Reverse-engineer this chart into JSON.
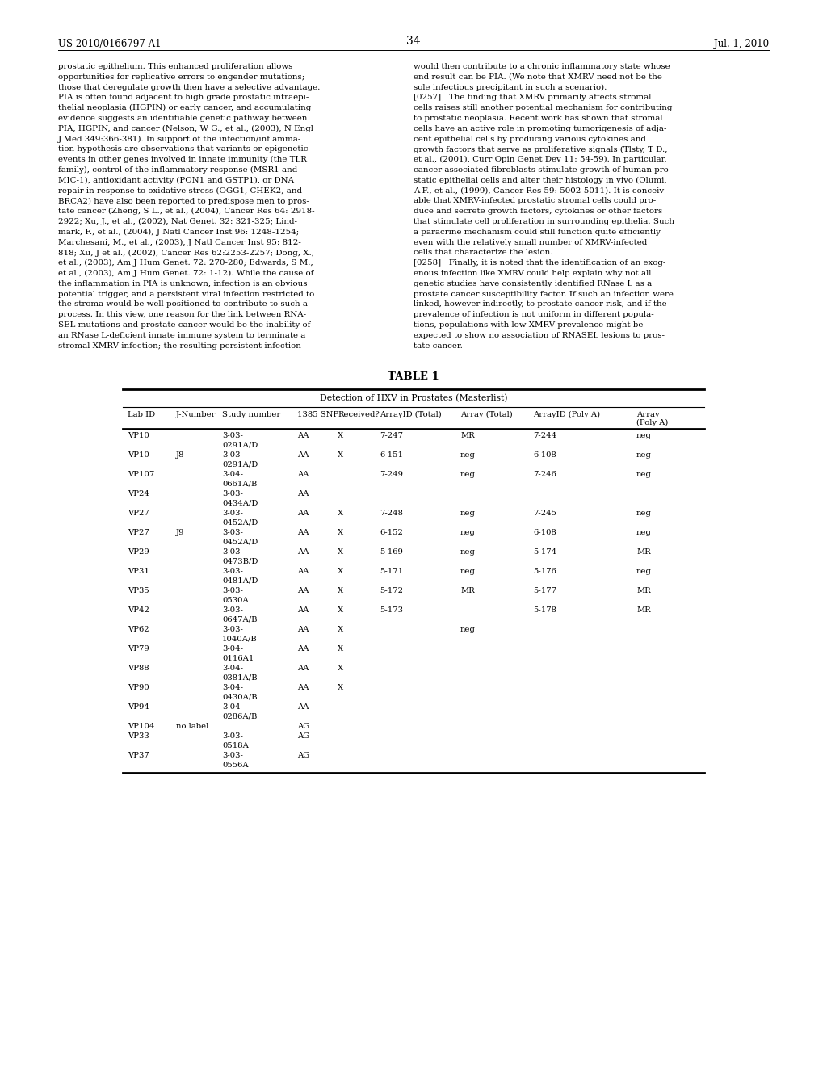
{
  "page_number": "34",
  "patent_left": "US 2010/0166797 A1",
  "patent_right": "Jul. 1, 2010",
  "background_color": "#ffffff",
  "text_color": "#000000",
  "left_col_lines": [
    "prostatic epithelium. This enhanced proliferation allows",
    "opportunities for replicative errors to engender mutations;",
    "those that deregulate growth then have a selective advantage.",
    "PIA is often found adjacent to high grade prostatic intraepi-",
    "thelial neoplasia (HGPIN) or early cancer, and accumulating",
    "evidence suggests an identifiable genetic pathway between",
    "PIA, HGPIN, and cancer (Nelson, W G., et al., (2003), N Engl",
    "J Med 349:366-381). In support of the infection/inflamma-",
    "tion hypothesis are observations that variants or epigenetic",
    "events in other genes involved in innate immunity (the TLR",
    "family), control of the inflammatory response (MSR1 and",
    "MIC-1), antioxidant activity (PON1 and GSTP1), or DNA",
    "repair in response to oxidative stress (OGG1, CHEK2, and",
    "BRCA2) have also been reported to predispose men to pros-",
    "tate cancer (Zheng, S L., et al., (2004), Cancer Res 64: 2918-",
    "2922; Xu, J., et al., (2002), Nat Genet. 32: 321-325; Lind-",
    "mark, F., et al., (2004), J Natl Cancer Inst 96: 1248-1254;",
    "Marchesani, M., et al., (2003), J Natl Cancer Inst 95: 812-",
    "818; Xu, J et al., (2002), Cancer Res 62:2253-2257; Dong, X.,",
    "et al., (2003), Am J Hum Genet. 72: 270-280; Edwards, S M.,",
    "et al., (2003), Am J Hum Genet. 72: 1-12). While the cause of",
    "the inflammation in PIA is unknown, infection is an obvious",
    "potential trigger, and a persistent viral infection restricted to",
    "the stroma would be well-positioned to contribute to such a",
    "process. In this view, one reason for the link between RNA-",
    "SEL mutations and prostate cancer would be the inability of",
    "an RNase L-deficient innate immune system to terminate a",
    "stromal XMRV infection; the resulting persistent infection"
  ],
  "right_col_lines": [
    "would then contribute to a chronic inflammatory state whose",
    "end result can be PIA. (We note that XMRV need not be the",
    "sole infectious precipitant in such a scenario).",
    "[0257]   The finding that XMRV primarily affects stromal",
    "cells raises still another potential mechanism for contributing",
    "to prostatic neoplasia. Recent work has shown that stromal",
    "cells have an active role in promoting tumorigenesis of adja-",
    "cent epithelial cells by producing various cytokines and",
    "growth factors that serve as proliferative signals (Tlsty, T D.,",
    "et al., (2001), Curr Opin Genet Dev 11: 54-59). In particular,",
    "cancer associated fibroblasts stimulate growth of human pro-",
    "static epithelial cells and alter their histology in vivo (Olumi,",
    "A F., et al., (1999), Cancer Res 59: 5002-5011). It is conceiv-",
    "able that XMRV-infected prostatic stromal cells could pro-",
    "duce and secrete growth factors, cytokines or other factors",
    "that stimulate cell proliferation in surrounding epithelia. Such",
    "a paracrine mechanism could still function quite efficiently",
    "even with the relatively small number of XMRV-infected",
    "cells that characterize the lesion.",
    "[0258]   Finally, it is noted that the identification of an exog-",
    "enous infection like XMRV could help explain why not all",
    "genetic studies have consistently identified RNase L as a",
    "prostate cancer susceptibility factor. If such an infection were",
    "linked, however indirectly, to prostate cancer risk, and if the",
    "prevalence of infection is not uniform in different popula-",
    "tions, populations with low XMRV prevalence might be",
    "expected to show no association of RNASEL lesions to pros-",
    "tate cancer."
  ],
  "table_title": "TABLE 1",
  "table_subtitle": "Detection of HXV in Prostates (Masterlist)",
  "col_headers_line1": [
    "Lab ID",
    "J-Number",
    "Study number",
    "1385 SNP",
    "Received?",
    "ArrayID (Total)",
    "Array (Total)",
    "ArrayID (Poly A)",
    "Array"
  ],
  "col_headers_line2": [
    "",
    "",
    "",
    "",
    "",
    "",
    "",
    "",
    "(Poly A)"
  ],
  "table_rows": [
    [
      "VP10",
      "",
      "3-03-",
      "AA",
      "X",
      "7-247",
      "MR",
      "7-244",
      "neg"
    ],
    [
      "",
      "",
      "0291A/D",
      "",
      "",
      "",
      "",
      "",
      ""
    ],
    [
      "VP10",
      "J8",
      "3-03-",
      "AA",
      "X",
      "6-151",
      "neg",
      "6-108",
      "neg"
    ],
    [
      "",
      "",
      "0291A/D",
      "",
      "",
      "",
      "",
      "",
      ""
    ],
    [
      "VP107",
      "",
      "3-04-",
      "AA",
      "",
      "7-249",
      "neg",
      "7-246",
      "neg"
    ],
    [
      "",
      "",
      "0661A/B",
      "",
      "",
      "",
      "",
      "",
      ""
    ],
    [
      "VP24",
      "",
      "3-03-",
      "AA",
      "",
      "",
      "",
      "",
      ""
    ],
    [
      "",
      "",
      "0434A/D",
      "",
      "",
      "",
      "",
      "",
      ""
    ],
    [
      "VP27",
      "",
      "3-03-",
      "AA",
      "X",
      "7-248",
      "neg",
      "7-245",
      "neg"
    ],
    [
      "",
      "",
      "0452A/D",
      "",
      "",
      "",
      "",
      "",
      ""
    ],
    [
      "VP27",
      "J9",
      "3-03-",
      "AA",
      "X",
      "6-152",
      "neg",
      "6-108",
      "neg"
    ],
    [
      "",
      "",
      "0452A/D",
      "",
      "",
      "",
      "",
      "",
      ""
    ],
    [
      "VP29",
      "",
      "3-03-",
      "AA",
      "X",
      "5-169",
      "neg",
      "5-174",
      "MR"
    ],
    [
      "",
      "",
      "0473B/D",
      "",
      "",
      "",
      "",
      "",
      ""
    ],
    [
      "VP31",
      "",
      "3-03-",
      "AA",
      "X",
      "5-171",
      "neg",
      "5-176",
      "neg"
    ],
    [
      "",
      "",
      "0481A/D",
      "",
      "",
      "",
      "",
      "",
      ""
    ],
    [
      "VP35",
      "",
      "3-03-",
      "AA",
      "X",
      "5-172",
      "MR",
      "5-177",
      "MR"
    ],
    [
      "",
      "",
      "0530A",
      "",
      "",
      "",
      "",
      "",
      ""
    ],
    [
      "VP42",
      "",
      "3-03-",
      "AA",
      "X",
      "5-173",
      "",
      "5-178",
      "MR"
    ],
    [
      "",
      "",
      "0647A/B",
      "",
      "",
      "",
      "",
      "",
      ""
    ],
    [
      "VP62",
      "",
      "3-03-",
      "AA",
      "X",
      "",
      "neg",
      "",
      ""
    ],
    [
      "",
      "",
      "1040A/B",
      "",
      "",
      "",
      "",
      "",
      ""
    ],
    [
      "VP79",
      "",
      "3-04-",
      "AA",
      "X",
      "",
      "",
      "",
      ""
    ],
    [
      "",
      "",
      "0116A1",
      "",
      "",
      "",
      "",
      "",
      ""
    ],
    [
      "VP88",
      "",
      "3-04-",
      "AA",
      "X",
      "",
      "",
      "",
      ""
    ],
    [
      "",
      "",
      "0381A/B",
      "",
      "",
      "",
      "",
      "",
      ""
    ],
    [
      "VP90",
      "",
      "3-04-",
      "AA",
      "X",
      "",
      "",
      "",
      ""
    ],
    [
      "",
      "",
      "0430A/B",
      "",
      "",
      "",
      "",
      "",
      ""
    ],
    [
      "VP94",
      "",
      "3-04-",
      "AA",
      "",
      "",
      "",
      "",
      ""
    ],
    [
      "",
      "",
      "0286A/B",
      "",
      "",
      "",
      "",
      "",
      ""
    ],
    [
      "VP104",
      "no label",
      "",
      "AG",
      "",
      "",
      "",
      "",
      ""
    ],
    [
      "VP33",
      "",
      "3-03-",
      "AG",
      "",
      "",
      "",
      "",
      ""
    ],
    [
      "",
      "",
      "0518A",
      "",
      "",
      "",
      "",
      "",
      ""
    ],
    [
      "VP37",
      "",
      "3-03-",
      "AG",
      "",
      "",
      "",
      "",
      ""
    ],
    [
      "",
      "",
      "0556A",
      "",
      "",
      "",
      "",
      "",
      ""
    ]
  ]
}
